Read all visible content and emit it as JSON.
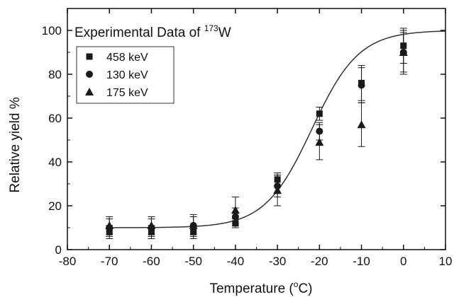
{
  "chart_data": {
    "type": "scatter",
    "title": {
      "prefix": "Experimental Data of ",
      "mass_number": "173",
      "element": "W"
    },
    "xlabel": {
      "prefix": "Temperature (",
      "degree": "o",
      "suffix": "C)"
    },
    "ylabel": "Relative yield %",
    "xlim": [
      -80,
      10
    ],
    "ylim": [
      0,
      110
    ],
    "xticks": [
      -80,
      -70,
      -60,
      -50,
      -40,
      -30,
      -20,
      -10,
      0,
      10
    ],
    "yticks": [
      0,
      20,
      40,
      60,
      80,
      100
    ],
    "grid": false,
    "legend_position": "top-left",
    "series": [
      {
        "name": "458 keV",
        "marker": "square",
        "x": [
          -70,
          -60,
          -50,
          -40,
          -30,
          -20,
          -10,
          0
        ],
        "y": [
          8,
          8,
          8,
          12,
          32,
          62,
          76,
          93
        ],
        "err": [
          3,
          3,
          3,
          2,
          3,
          3,
          8,
          8
        ]
      },
      {
        "name": "130 keV",
        "marker": "circle",
        "x": [
          -70,
          -60,
          -50,
          -40,
          -30,
          -20,
          -10,
          0
        ],
        "y": [
          10,
          10,
          11,
          15,
          29,
          54,
          75,
          90
        ],
        "err": [
          4,
          4,
          4,
          4,
          5,
          4,
          8,
          9
        ]
      },
      {
        "name": "175 keV",
        "marker": "triangle",
        "x": [
          -70,
          -60,
          -50,
          -40,
          -30,
          -20,
          -10,
          0
        ],
        "y": [
          11,
          11,
          11,
          18,
          27,
          49,
          57,
          90
        ],
        "err": [
          4,
          4,
          5,
          6,
          7,
          8,
          10,
          10
        ]
      }
    ],
    "fit_curve": {
      "model": "sigmoid",
      "baseline": 10,
      "top": 100,
      "midpoint": -21.8,
      "width": 5.6
    },
    "colors": {
      "marker": "#1a1a1a",
      "axis": "#111111",
      "curve": "#333333"
    }
  }
}
